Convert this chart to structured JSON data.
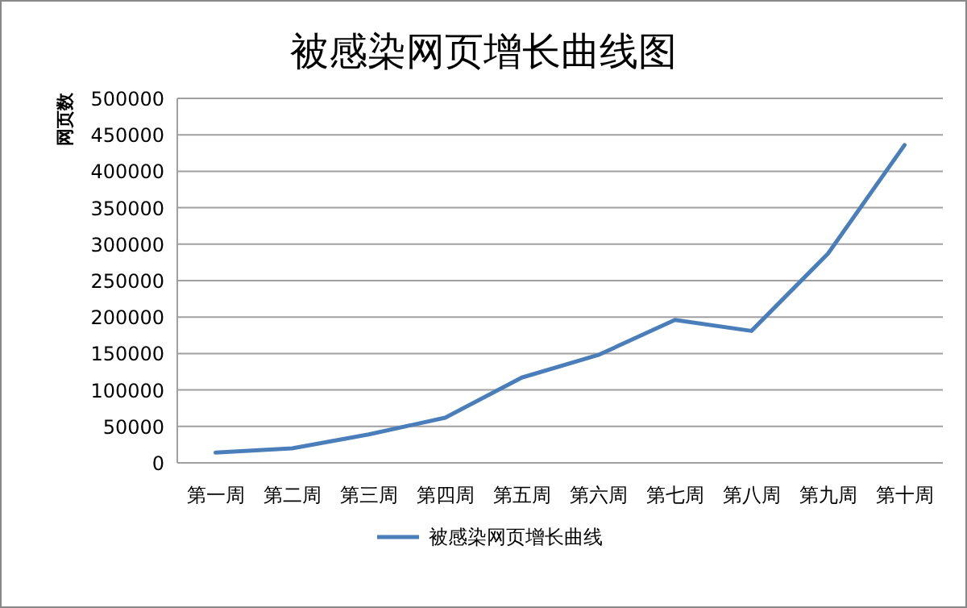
{
  "chart_data": {
    "type": "line",
    "title": "被感染网页增长曲线图",
    "ylabel": "网页数",
    "categories": [
      "第一周",
      "第二周",
      "第三周",
      "第四周",
      "第五周",
      "第六周",
      "第七周",
      "第八周",
      "第九周",
      "第十周"
    ],
    "series": [
      {
        "name": "被感染网页增长曲线",
        "color": "#4a7ebb",
        "values": [
          14000,
          20000,
          39000,
          62000,
          117000,
          148000,
          196000,
          181000,
          287000,
          436000
        ]
      }
    ],
    "ylim": [
      0,
      500000
    ],
    "yticks": [
      0,
      50000,
      100000,
      150000,
      200000,
      250000,
      300000,
      350000,
      400000,
      450000,
      500000
    ],
    "grid": "y",
    "legend": "bottom",
    "marker": "none",
    "line_style": "solid"
  }
}
